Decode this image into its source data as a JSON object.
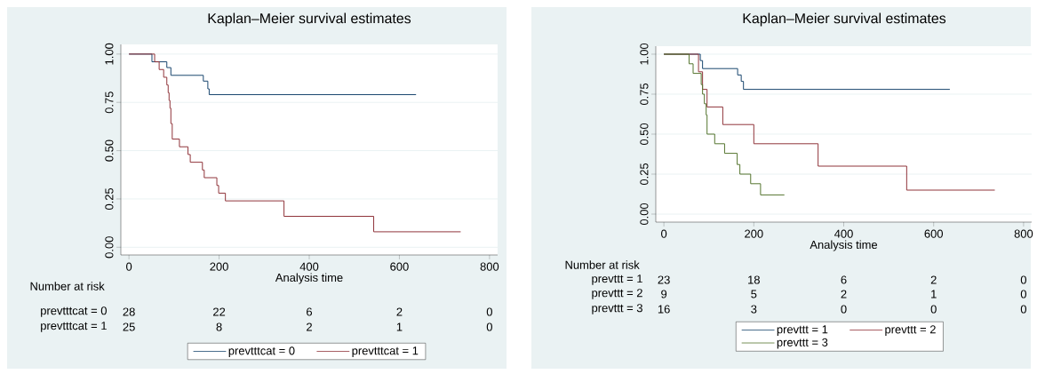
{
  "chart_data": [
    {
      "type": "step",
      "title": "Kaplan–Meier survival estimates",
      "xlabel": "Analysis time",
      "xlim": [
        -18,
        818
      ],
      "ylim": [
        -0.04,
        1.05
      ],
      "xticks": [
        0,
        200,
        400,
        600,
        800
      ],
      "yticks": [
        {
          "value": 0,
          "label": "0.00"
        },
        {
          "value": 0.25,
          "label": "0.25"
        },
        {
          "value": 0.5,
          "label": "0.50"
        },
        {
          "value": 0.75,
          "label": "0.75"
        },
        {
          "value": 1,
          "label": "1.00"
        }
      ],
      "grid": "y",
      "legend": "bottom",
      "marker": "none",
      "line_style": "solid",
      "series": [
        {
          "name": "prevtttcat = 0",
          "color": "#1a476f",
          "x": [
            0,
            51,
            84,
            93,
            165,
            175,
            178,
            637
          ],
          "values": [
            1,
            0.96,
            0.93,
            0.89,
            0.86,
            0.82,
            0.79,
            0.79
          ]
        },
        {
          "name": "prevtttcat = 1",
          "color": "#90353b",
          "x": [
            0,
            57,
            67,
            77,
            84,
            87,
            89,
            91,
            93,
            96,
            112,
            131,
            136,
            163,
            167,
            195,
            199,
            214,
            344,
            543,
            736
          ],
          "values": [
            1,
            0.96,
            0.92,
            0.88,
            0.84,
            0.8,
            0.76,
            0.72,
            0.64,
            0.56,
            0.52,
            0.48,
            0.44,
            0.4,
            0.36,
            0.32,
            0.28,
            0.24,
            0.16,
            0.08,
            0.08
          ]
        }
      ],
      "annotations": [
        "Number at risk",
        "prevtttcat = 0",
        "28",
        "22",
        "6",
        "2",
        "0",
        "prevtttcat = 1",
        "25",
        "8",
        "2",
        "1",
        "0"
      ]
    },
    {
      "type": "step",
      "title": "Kaplan–Meier survival estimates",
      "xlabel": "Analysis time",
      "xlim": [
        -18,
        818
      ],
      "ylim": [
        -0.05,
        1.05
      ],
      "xticks": [
        0,
        200,
        400,
        600,
        800
      ],
      "yticks": [
        {
          "value": 0,
          "label": "0.00"
        },
        {
          "value": 0.25,
          "label": "0.25"
        },
        {
          "value": 0.5,
          "label": "0.50"
        },
        {
          "value": 0.75,
          "label": "0.75"
        },
        {
          "value": 1,
          "label": "1.00"
        }
      ],
      "grid": "y",
      "legend": "bottom",
      "marker": "none",
      "line_style": "solid",
      "series": [
        {
          "name": "prevttt = 1",
          "color": "#1a476f",
          "x": [
            0,
            81,
            86,
            164,
            172,
            177,
            636
          ],
          "values": [
            1,
            0.96,
            0.91,
            0.87,
            0.83,
            0.78,
            0.78
          ]
        },
        {
          "name": "prevttt = 2",
          "color": "#90353b",
          "x": [
            0,
            77,
            86,
            96,
            131,
            200,
            343,
            540,
            736
          ],
          "values": [
            1,
            0.89,
            0.78,
            0.67,
            0.56,
            0.44,
            0.3,
            0.15,
            0.15
          ]
        },
        {
          "name": "prevttt = 3",
          "color": "#55752f",
          "x": [
            0,
            56,
            65,
            83,
            86,
            90,
            94,
            96,
            113,
            135,
            163,
            169,
            193,
            215,
            268
          ],
          "values": [
            1,
            0.94,
            0.88,
            0.81,
            0.75,
            0.69,
            0.62,
            0.5,
            0.44,
            0.38,
            0.31,
            0.25,
            0.19,
            0.12,
            0.12
          ]
        }
      ],
      "annotations": [
        "Number at risk",
        "prevttt = 1",
        "23",
        "18",
        "6",
        "2",
        "0",
        "prevttt = 2",
        "9",
        "5",
        "2",
        "1",
        "0",
        "prevttt = 3",
        "16",
        "3",
        "0",
        "0",
        "0"
      ]
    }
  ]
}
